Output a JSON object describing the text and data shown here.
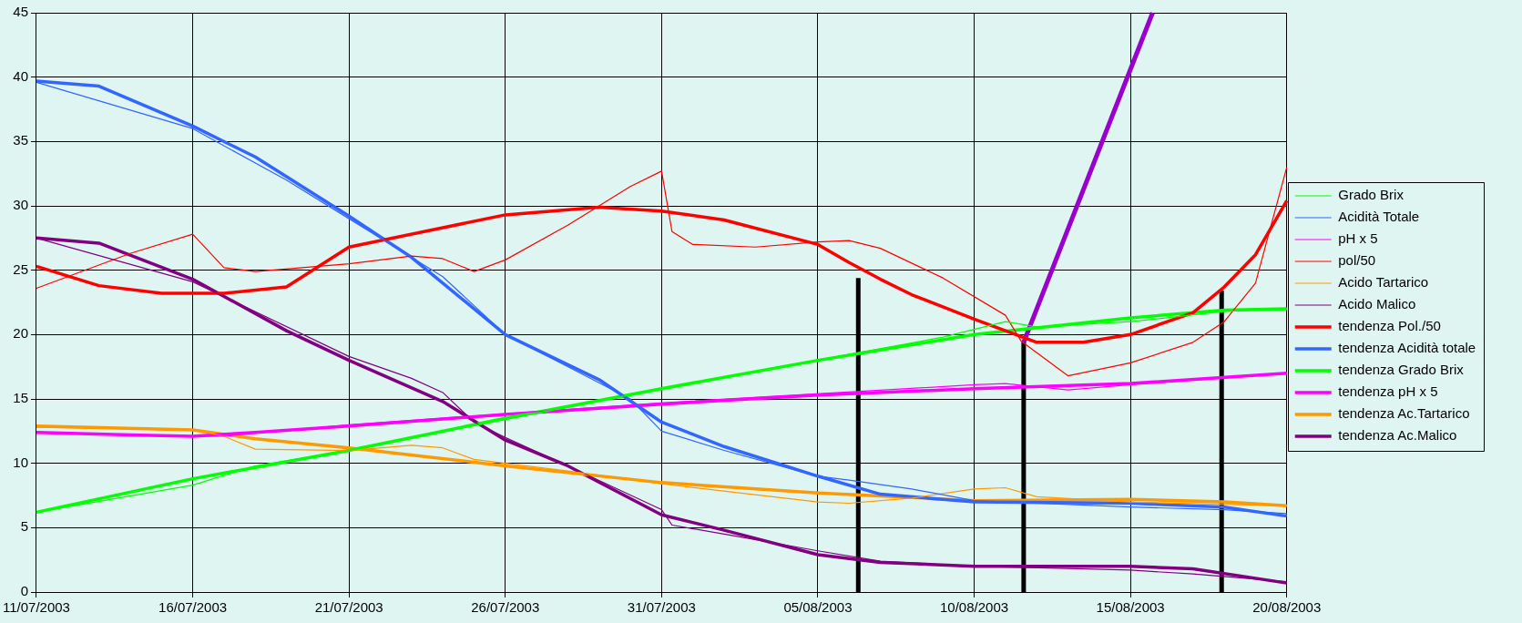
{
  "chart_data": {
    "type": "line",
    "grid": true,
    "legend": "right",
    "marker": "none",
    "line_style": "solid",
    "xlim": [
      "2003-07-11",
      "2003-08-20"
    ],
    "xticks": [
      {
        "value": "2003-07-11",
        "label": "11/07/2003"
      },
      {
        "value": "2003-07-16",
        "label": "16/07/2003"
      },
      {
        "value": "2003-07-21",
        "label": "21/07/2003"
      },
      {
        "value": "2003-07-26",
        "label": "26/07/2003"
      },
      {
        "value": "2003-07-31",
        "label": "31/07/2003"
      },
      {
        "value": "2003-08-05",
        "label": "05/08/2003"
      },
      {
        "value": "2003-08-10",
        "label": "10/08/2003"
      },
      {
        "value": "2003-08-15",
        "label": "15/08/2003"
      },
      {
        "value": "2003-08-20",
        "label": "20/08/2003"
      }
    ],
    "ylim": [
      0,
      45
    ],
    "yticks": [
      0,
      5,
      10,
      15,
      20,
      25,
      30,
      35,
      40,
      45
    ],
    "series": [
      {
        "name": "Grado Brix",
        "color": "#00ff00",
        "x": [
          "2003-07-11",
          "2003-07-16",
          "2003-07-18",
          "2003-07-21",
          "2003-07-31",
          "2003-08-09",
          "2003-08-11",
          "2003-08-12",
          "2003-08-15",
          "2003-08-18",
          "2003-08-20"
        ],
        "values": [
          6.2,
          8.3,
          9.8,
          11.0,
          15.8,
          19.8,
          21.0,
          20.6,
          21.0,
          21.8,
          22.0
        ]
      },
      {
        "name": "Acidità Totale",
        "color": "#3366ff",
        "x": [
          "2003-07-11",
          "2003-07-16",
          "2003-07-19",
          "2003-07-21",
          "2003-07-24",
          "2003-07-26",
          "2003-07-30",
          "2003-07-31",
          "2003-08-02",
          "2003-08-05",
          "2003-08-06",
          "2003-08-08",
          "2003-08-10",
          "2003-08-15",
          "2003-08-18",
          "2003-08-20"
        ],
        "values": [
          39.6,
          36.0,
          32.0,
          29.0,
          24.5,
          20.0,
          15.0,
          12.5,
          11.0,
          9.0,
          8.7,
          8.0,
          7.1,
          6.6,
          6.4,
          6.1
        ]
      },
      {
        "name": "pH x 5",
        "color": "#ff00ff",
        "x": [
          "2003-07-11",
          "2003-07-16",
          "2003-07-17",
          "2003-07-21",
          "2003-07-31",
          "2003-08-10",
          "2003-08-11",
          "2003-08-13",
          "2003-08-15",
          "2003-08-20"
        ],
        "values": [
          12.4,
          12.1,
          12.1,
          13.0,
          14.7,
          16.1,
          16.2,
          15.7,
          16.1,
          17.0
        ]
      },
      {
        "name": "pol/50",
        "color": "#ff0000",
        "x": [
          "2003-07-11",
          "2003-07-14",
          "2003-07-16",
          "2003-07-17",
          "2003-07-18",
          "2003-07-21",
          "2003-07-23",
          "2003-07-24",
          "2003-07-25",
          "2003-07-26",
          "2003-07-28",
          "2003-07-30",
          "2003-07-31",
          "2003-07-31T08:00",
          "2003-08-01",
          "2003-08-03",
          "2003-08-05",
          "2003-08-06",
          "2003-08-07",
          "2003-08-09",
          "2003-08-11",
          "2003-08-11T12:00",
          "2003-08-13",
          "2003-08-15",
          "2003-08-17",
          "2003-08-18",
          "2003-08-19",
          "2003-08-20"
        ],
        "values": [
          23.6,
          26.3,
          27.8,
          25.2,
          24.9,
          25.5,
          26.1,
          25.9,
          24.9,
          25.8,
          28.5,
          31.5,
          32.7,
          28.0,
          27.0,
          26.8,
          27.2,
          27.3,
          26.7,
          24.4,
          21.5,
          19.5,
          16.8,
          17.8,
          19.4,
          21.0,
          24.0,
          33.0
        ]
      },
      {
        "name": "Acido Tartarico",
        "color": "#ff9900",
        "x": [
          "2003-07-11",
          "2003-07-16",
          "2003-07-17",
          "2003-07-18",
          "2003-07-21",
          "2003-07-23",
          "2003-07-24",
          "2003-07-25",
          "2003-07-28",
          "2003-07-31",
          "2003-08-05",
          "2003-08-06",
          "2003-08-08",
          "2003-08-10",
          "2003-08-11",
          "2003-08-12",
          "2003-08-15",
          "2003-08-20"
        ],
        "values": [
          12.8,
          12.6,
          12.1,
          11.1,
          11.0,
          11.4,
          11.2,
          10.3,
          9.4,
          8.4,
          7.0,
          6.9,
          7.3,
          8.0,
          8.1,
          7.4,
          7.0,
          6.7
        ]
      },
      {
        "name": "Acido Malico",
        "color": "#800080",
        "x": [
          "2003-07-11",
          "2003-07-16",
          "2003-07-21",
          "2003-07-23",
          "2003-07-24",
          "2003-07-25",
          "2003-07-26",
          "2003-07-28",
          "2003-07-31",
          "2003-07-31T08:00",
          "2003-08-02",
          "2003-08-05",
          "2003-08-07",
          "2003-08-10",
          "2003-08-15",
          "2003-08-17",
          "2003-08-20"
        ],
        "values": [
          27.5,
          24.1,
          18.3,
          16.6,
          15.5,
          13.2,
          12.0,
          9.8,
          6.4,
          5.2,
          4.5,
          3.2,
          2.4,
          2.0,
          1.7,
          1.4,
          0.8
        ]
      },
      {
        "name": "tendenza Pol./50",
        "color": "#ff0000",
        "x": [
          "2003-07-11",
          "2003-07-13",
          "2003-07-15",
          "2003-07-17",
          "2003-07-19",
          "2003-07-21",
          "2003-07-26",
          "2003-07-29",
          "2003-07-31",
          "2003-08-02",
          "2003-08-05",
          "2003-08-06",
          "2003-08-07",
          "2003-08-08",
          "2003-08-10",
          "2003-08-12",
          "2003-08-13T12:00",
          "2003-08-15",
          "2003-08-17",
          "2003-08-18",
          "2003-08-19",
          "2003-08-20"
        ],
        "values": [
          25.3,
          23.8,
          23.2,
          23.2,
          23.7,
          26.8,
          29.3,
          29.9,
          29.6,
          28.9,
          27.0,
          25.6,
          24.3,
          23.1,
          21.2,
          19.4,
          19.4,
          20.0,
          21.7,
          23.7,
          26.2,
          30.4
        ]
      },
      {
        "name": "tendenza Acidità totale",
        "color": "#3366ff",
        "x": [
          "2003-07-11",
          "2003-07-13",
          "2003-07-16",
          "2003-07-18",
          "2003-07-21",
          "2003-07-23",
          "2003-07-26",
          "2003-07-29",
          "2003-07-31",
          "2003-08-02",
          "2003-08-05",
          "2003-08-07",
          "2003-08-10",
          "2003-08-15",
          "2003-08-18",
          "2003-08-20"
        ],
        "values": [
          39.7,
          39.3,
          36.2,
          33.8,
          29.2,
          26.0,
          20.0,
          16.5,
          13.2,
          11.3,
          9.0,
          7.6,
          7.0,
          6.9,
          6.6,
          5.9
        ]
      },
      {
        "name": "tendenza Grado Brix",
        "color": "#00ff00",
        "x": [
          "2003-07-11",
          "2003-07-16",
          "2003-07-21",
          "2003-07-26",
          "2003-07-31",
          "2003-08-05",
          "2003-08-10",
          "2003-08-15",
          "2003-08-18",
          "2003-08-20"
        ],
        "values": [
          6.2,
          8.8,
          11.0,
          13.5,
          15.8,
          18.0,
          20.0,
          21.3,
          21.9,
          22.0
        ]
      },
      {
        "name": "tendenza pH x 5",
        "color": "#ff00ff",
        "x": [
          "2003-07-11",
          "2003-07-14",
          "2003-07-16",
          "2003-07-18",
          "2003-07-21",
          "2003-07-26",
          "2003-07-31",
          "2003-08-05",
          "2003-08-10",
          "2003-08-15",
          "2003-08-20"
        ],
        "values": [
          12.4,
          12.2,
          12.1,
          12.4,
          12.9,
          13.8,
          14.6,
          15.3,
          15.8,
          16.2,
          17.0
        ]
      },
      {
        "name": "tendenza Ac.Tartarico",
        "color": "#ff9900",
        "x": [
          "2003-07-11",
          "2003-07-16",
          "2003-07-18",
          "2003-07-21",
          "2003-07-26",
          "2003-07-31",
          "2003-08-05",
          "2003-08-10",
          "2003-08-15",
          "2003-08-18",
          "2003-08-20"
        ],
        "values": [
          12.9,
          12.6,
          11.9,
          11.2,
          9.8,
          8.5,
          7.7,
          7.1,
          7.2,
          7.0,
          6.7
        ]
      },
      {
        "name": "tendenza Ac.Malico",
        "color": "#800080",
        "x": [
          "2003-07-11",
          "2003-07-13",
          "2003-07-16",
          "2003-07-19",
          "2003-07-21",
          "2003-07-24",
          "2003-07-26",
          "2003-07-28",
          "2003-07-31",
          "2003-08-02",
          "2003-08-05",
          "2003-08-07",
          "2003-08-10",
          "2003-08-15",
          "2003-08-17",
          "2003-08-20"
        ],
        "values": [
          27.5,
          27.1,
          24.3,
          20.3,
          18.0,
          14.8,
          11.8,
          9.8,
          6.0,
          4.8,
          2.9,
          2.3,
          2.0,
          2.0,
          1.8,
          0.7
        ]
      },
      {
        "color": "#9900cc",
        "x": [
          "2003-08-11T14:00",
          "2003-08-15T17:00"
        ],
        "values": [
          19.4,
          45
        ]
      },
      {
        "color": "#000000",
        "x": [
          "2003-08-06T07:00",
          "2003-08-06T07:00"
        ],
        "values": [
          0,
          24.4
        ]
      },
      {
        "color": "#000000",
        "x": [
          "2003-08-11T14:00",
          "2003-08-11T14:00"
        ],
        "values": [
          0,
          19.4
        ]
      },
      {
        "color": "#000000",
        "x": [
          "2003-08-17T22:00",
          "2003-08-17T22:00"
        ],
        "values": [
          0,
          23.4
        ]
      }
    ]
  }
}
